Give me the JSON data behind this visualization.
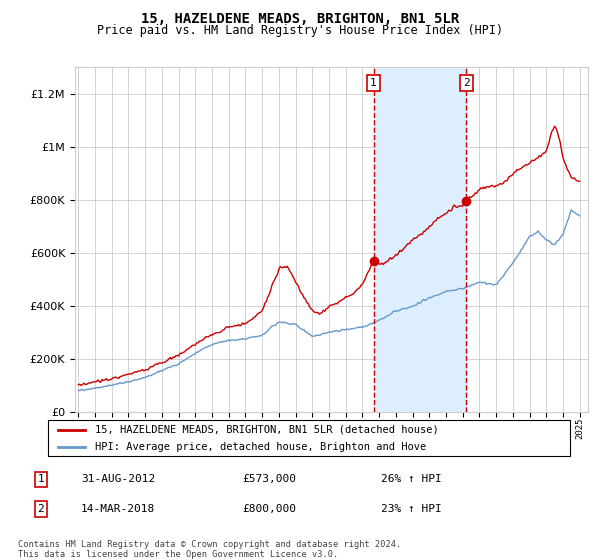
{
  "title": "15, HAZELDENE MEADS, BRIGHTON, BN1 5LR",
  "subtitle": "Price paid vs. HM Land Registry's House Price Index (HPI)",
  "legend_line1": "15, HAZELDENE MEADS, BRIGHTON, BN1 5LR (detached house)",
  "legend_line2": "HPI: Average price, detached house, Brighton and Hove",
  "transaction1_date": "31-AUG-2012",
  "transaction1_price": 573000,
  "transaction1_pct": "26%",
  "transaction2_date": "14-MAR-2018",
  "transaction2_price": 800000,
  "transaction2_pct": "23%",
  "footer": "Contains HM Land Registry data © Crown copyright and database right 2024.\nThis data is licensed under the Open Government Licence v3.0.",
  "transaction1_year": 2012.667,
  "transaction2_year": 2018.208,
  "ylim": [
    0,
    1300000
  ],
  "xlim_start": 1994.8,
  "xlim_end": 2025.5,
  "red_color": "#cc0000",
  "blue_color": "#6699cc",
  "shade_color": "#ddeeff",
  "background_color": "#ffffff",
  "grid_color": "#cccccc",
  "hpi_years": [
    1995.0,
    1995.08,
    1995.17,
    1995.25,
    1995.33,
    1995.42,
    1995.5,
    1995.58,
    1995.67,
    1995.75,
    1995.83,
    1995.92,
    1996.0,
    1996.08,
    1996.17,
    1996.25,
    1996.33,
    1996.42,
    1996.5,
    1996.58,
    1996.67,
    1996.75,
    1996.83,
    1996.92,
    1997.0,
    1997.08,
    1997.17,
    1997.25,
    1997.33,
    1997.42,
    1997.5,
    1997.58,
    1997.67,
    1997.75,
    1997.83,
    1997.92,
    1998.0,
    1998.08,
    1998.17,
    1998.25,
    1998.33,
    1998.42,
    1998.5,
    1998.58,
    1998.67,
    1998.75,
    1998.83,
    1998.92,
    1999.0,
    1999.08,
    1999.17,
    1999.25,
    1999.33,
    1999.42,
    1999.5,
    1999.58,
    1999.67,
    1999.75,
    1999.83,
    1999.92,
    2000.0,
    2000.08,
    2000.17,
    2000.25,
    2000.33,
    2000.42,
    2000.5,
    2000.58,
    2000.67,
    2000.75,
    2000.83,
    2000.92,
    2001.0,
    2001.08,
    2001.17,
    2001.25,
    2001.33,
    2001.42,
    2001.5,
    2001.58,
    2001.67,
    2001.75,
    2001.83,
    2001.92,
    2002.0,
    2002.08,
    2002.17,
    2002.25,
    2002.33,
    2002.42,
    2002.5,
    2002.58,
    2002.67,
    2002.75,
    2002.83,
    2002.92,
    2003.0,
    2003.08,
    2003.17,
    2003.25,
    2003.33,
    2003.42,
    2003.5,
    2003.58,
    2003.67,
    2003.75,
    2003.83,
    2003.92,
    2004.0,
    2004.08,
    2004.17,
    2004.25,
    2004.33,
    2004.42,
    2004.5,
    2004.58,
    2004.67,
    2004.75,
    2004.83,
    2004.92,
    2005.0,
    2005.08,
    2005.17,
    2005.25,
    2005.33,
    2005.42,
    2005.5,
    2005.58,
    2005.67,
    2005.75,
    2005.83,
    2005.92,
    2006.0,
    2006.08,
    2006.17,
    2006.25,
    2006.33,
    2006.42,
    2006.5,
    2006.58,
    2006.67,
    2006.75,
    2006.83,
    2006.92,
    2007.0,
    2007.08,
    2007.17,
    2007.25,
    2007.33,
    2007.42,
    2007.5,
    2007.58,
    2007.67,
    2007.75,
    2007.83,
    2007.92,
    2008.0,
    2008.08,
    2008.17,
    2008.25,
    2008.33,
    2008.42,
    2008.5,
    2008.58,
    2008.67,
    2008.75,
    2008.83,
    2008.92,
    2009.0,
    2009.08,
    2009.17,
    2009.25,
    2009.33,
    2009.42,
    2009.5,
    2009.58,
    2009.67,
    2009.75,
    2009.83,
    2009.92,
    2010.0,
    2010.08,
    2010.17,
    2010.25,
    2010.33,
    2010.42,
    2010.5,
    2010.58,
    2010.67,
    2010.75,
    2010.83,
    2010.92,
    2011.0,
    2011.08,
    2011.17,
    2011.25,
    2011.33,
    2011.42,
    2011.5,
    2011.58,
    2011.67,
    2011.75,
    2011.83,
    2011.92,
    2012.0,
    2012.08,
    2012.17,
    2012.25,
    2012.33,
    2012.42,
    2012.5,
    2012.58,
    2012.67,
    2012.75,
    2012.83,
    2012.92,
    2013.0,
    2013.08,
    2013.17,
    2013.25,
    2013.33,
    2013.42,
    2013.5,
    2013.58,
    2013.67,
    2013.75,
    2013.83,
    2013.92,
    2014.0,
    2014.08,
    2014.17,
    2014.25,
    2014.33,
    2014.42,
    2014.5,
    2014.58,
    2014.67,
    2014.75,
    2014.83,
    2014.92,
    2015.0,
    2015.08,
    2015.17,
    2015.25,
    2015.33,
    2015.42,
    2015.5,
    2015.58,
    2015.67,
    2015.75,
    2015.83,
    2015.92,
    2016.0,
    2016.08,
    2016.17,
    2016.25,
    2016.33,
    2016.42,
    2016.5,
    2016.58,
    2016.67,
    2016.75,
    2016.83,
    2016.92,
    2017.0,
    2017.08,
    2017.17,
    2017.25,
    2017.33,
    2017.42,
    2017.5,
    2017.58,
    2017.67,
    2017.75,
    2017.83,
    2017.92,
    2018.0,
    2018.08,
    2018.17,
    2018.25,
    2018.33,
    2018.42,
    2018.5,
    2018.58,
    2018.67,
    2018.75,
    2018.83,
    2018.92,
    2019.0,
    2019.08,
    2019.17,
    2019.25,
    2019.33,
    2019.42,
    2019.5,
    2019.58,
    2019.67,
    2019.75,
    2019.83,
    2019.92,
    2020.0,
    2020.08,
    2020.17,
    2020.25,
    2020.33,
    2020.42,
    2020.5,
    2020.58,
    2020.67,
    2020.75,
    2020.83,
    2020.92,
    2021.0,
    2021.08,
    2021.17,
    2021.25,
    2021.33,
    2021.42,
    2021.5,
    2021.58,
    2021.67,
    2021.75,
    2021.83,
    2021.92,
    2022.0,
    2022.08,
    2022.17,
    2022.25,
    2022.33,
    2022.42,
    2022.5,
    2022.58,
    2022.67,
    2022.75,
    2022.83,
    2022.92,
    2023.0,
    2023.08,
    2023.17,
    2023.25,
    2023.33,
    2023.42,
    2023.5,
    2023.58,
    2023.67,
    2023.75,
    2023.83,
    2023.92,
    2024.0,
    2024.08,
    2024.17,
    2024.25,
    2024.33,
    2024.42,
    2024.5,
    2024.58,
    2024.67,
    2024.75,
    2024.83,
    2024.92,
    2025.0
  ]
}
